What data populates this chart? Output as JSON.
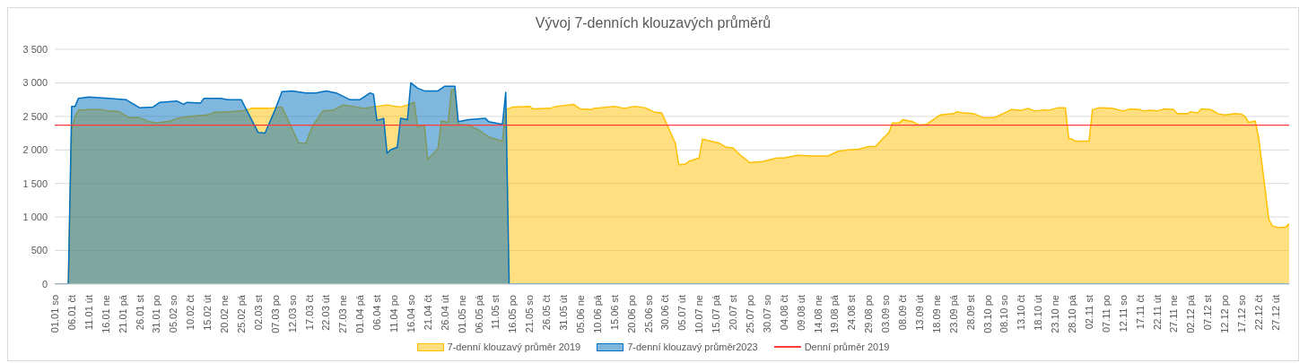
{
  "chart_data": {
    "type": "area",
    "title": "Vývoj 7-denních klouzavých průměrů",
    "xlim": [
      "--01-01",
      "--12-31"
    ],
    "xticks": [
      {
        "value": "--01-01",
        "label": "01.01 so"
      },
      {
        "value": "--01-06",
        "label": "06.01 čt"
      },
      {
        "value": "--01-11",
        "label": "11.01 út"
      },
      {
        "value": "--01-16",
        "label": "16.01 ne"
      },
      {
        "value": "--01-21",
        "label": "21.01 pá"
      },
      {
        "value": "--01-26",
        "label": "26.01 st"
      },
      {
        "value": "--01-31",
        "label": "31.01 po"
      },
      {
        "value": "--02-05",
        "label": "05.02 so"
      },
      {
        "value": "--02-10",
        "label": "10.02 čt"
      },
      {
        "value": "--02-15",
        "label": "15.02 út"
      },
      {
        "value": "--02-20",
        "label": "20.02 ne"
      },
      {
        "value": "--02-25",
        "label": "25.02 pá"
      },
      {
        "value": "--03-02",
        "label": "02.03 st"
      },
      {
        "value": "--03-07",
        "label": "07.03 po"
      },
      {
        "value": "--03-12",
        "label": "12.03 so"
      },
      {
        "value": "--03-17",
        "label": "17.03 čt"
      },
      {
        "value": "--03-22",
        "label": "22.03 út"
      },
      {
        "value": "--03-27",
        "label": "27.03 ne"
      },
      {
        "value": "--04-01",
        "label": "01.04 pá"
      },
      {
        "value": "--04-06",
        "label": "06.04 st"
      },
      {
        "value": "--04-11",
        "label": "11.04 po"
      },
      {
        "value": "--04-16",
        "label": "16.04 so"
      },
      {
        "value": "--04-21",
        "label": "21.04 čt"
      },
      {
        "value": "--04-26",
        "label": "26.04 út"
      },
      {
        "value": "--05-01",
        "label": "01.05 ne"
      },
      {
        "value": "--05-06",
        "label": "06.05 pá"
      },
      {
        "value": "--05-11",
        "label": "11.05 st"
      },
      {
        "value": "--05-16",
        "label": "16.05 po"
      },
      {
        "value": "--05-21",
        "label": "21.05 so"
      },
      {
        "value": "--05-26",
        "label": "26.05 čt"
      },
      {
        "value": "--05-31",
        "label": "31.05 út"
      },
      {
        "value": "--06-05",
        "label": "05.06 ne"
      },
      {
        "value": "--06-10",
        "label": "10.06 pá"
      },
      {
        "value": "--06-15",
        "label": "15.06 st"
      },
      {
        "value": "--06-20",
        "label": "20.06 po"
      },
      {
        "value": "--06-25",
        "label": "25.06 so"
      },
      {
        "value": "--06-30",
        "label": "30.06 čt"
      },
      {
        "value": "--07-05",
        "label": "05.07 út"
      },
      {
        "value": "--07-10",
        "label": "10.07 ne"
      },
      {
        "value": "--07-15",
        "label": "15.07 pá"
      },
      {
        "value": "--07-20",
        "label": "20.07 st"
      },
      {
        "value": "--07-25",
        "label": "25.07 po"
      },
      {
        "value": "--07-30",
        "label": "30.07 so"
      },
      {
        "value": "--08-04",
        "label": "04.08 čt"
      },
      {
        "value": "--08-09",
        "label": "09.08 út"
      },
      {
        "value": "--08-14",
        "label": "14.08 ne"
      },
      {
        "value": "--08-19",
        "label": "19.08 pá"
      },
      {
        "value": "--08-24",
        "label": "24.08 st"
      },
      {
        "value": "--08-29",
        "label": "29.08 po"
      },
      {
        "value": "--09-03",
        "label": "03.09 so"
      },
      {
        "value": "--09-08",
        "label": "08.09 čt"
      },
      {
        "value": "--09-13",
        "label": "13.09 út"
      },
      {
        "value": "--09-18",
        "label": "18.09 ne"
      },
      {
        "value": "--09-23",
        "label": "23.09 pá"
      },
      {
        "value": "--09-28",
        "label": "28.09 st"
      },
      {
        "value": "--10-03",
        "label": "03.10 po"
      },
      {
        "value": "--10-08",
        "label": "08.10 so"
      },
      {
        "value": "--10-13",
        "label": "13.10 čt"
      },
      {
        "value": "--10-18",
        "label": "18.10 út"
      },
      {
        "value": "--10-23",
        "label": "23.10 ne"
      },
      {
        "value": "--10-28",
        "label": "28.10 pá"
      },
      {
        "value": "--11-02",
        "label": "02.11 st"
      },
      {
        "value": "--11-07",
        "label": "07.11 po"
      },
      {
        "value": "--11-12",
        "label": "12.11 so"
      },
      {
        "value": "--11-17",
        "label": "17.11 čt"
      },
      {
        "value": "--11-22",
        "label": "22.11 út"
      },
      {
        "value": "--11-27",
        "label": "27.11 ne"
      },
      {
        "value": "--12-02",
        "label": "02.12 pá"
      },
      {
        "value": "--12-07",
        "label": "07.12 st"
      },
      {
        "value": "--12-12",
        "label": "12.12 po"
      },
      {
        "value": "--12-17",
        "label": "17.12 so"
      },
      {
        "value": "--12-22",
        "label": "22.12 čt"
      },
      {
        "value": "--12-27",
        "label": "27.12 út"
      }
    ],
    "ylim": [
      0,
      3500
    ],
    "yticks": [
      0,
      500,
      {
        "value": 1000,
        "label": "1 000"
      },
      {
        "value": 1500,
        "label": "1 500"
      },
      {
        "value": 2000,
        "label": "2 000"
      },
      {
        "value": 2500,
        "label": "2 500"
      },
      {
        "value": 3000,
        "label": "3 000"
      },
      {
        "value": 3500,
        "label": "3 500"
      }
    ],
    "grid": "y",
    "legend": "bottom",
    "series": [
      {
        "name": "7-denní klouzavý průměr 2019",
        "color": "#ffc000",
        "x": [
          "--01-01",
          "--01-05",
          "--01-06",
          "--01-07",
          "--01-08",
          "--01-11",
          "--01-15",
          "--01-17",
          "--01-20",
          "--01-23",
          "--01-26",
          "--01-29",
          "--01-31",
          "--02-04",
          "--02-06",
          "--02-10",
          "--02-15",
          "--02-17",
          "--02-22",
          "--02-25",
          "--02-28",
          "--03-05",
          "--03-09",
          "--03-11",
          "--03-14",
          "--03-16",
          "--03-18",
          "--03-21",
          "--03-24",
          "--03-27",
          "--03-30",
          "--04-02",
          "--04-06",
          "--04-09",
          "--04-13",
          "--04-15",
          "--04-17",
          "--04-18",
          "--04-20",
          "--04-21",
          "--04-24",
          "--04-25",
          "--04-27",
          "--04-28",
          "--04-29",
          "--04-30",
          "--05-03",
          "--05-06",
          "--05-09",
          "--05-13",
          "--05-14",
          "--05-16",
          "--05-21",
          "--05-22",
          "--05-27",
          "--05-29",
          "--06-03",
          "--06-05",
          "--06-08",
          "--06-09",
          "--06-15",
          "--06-18",
          "--06-21",
          "--06-24",
          "--06-27",
          "--06-29",
          "--07-03",
          "--07-04",
          "--07-06",
          "--07-07",
          "--07-10",
          "--07-11",
          "--07-16",
          "--07-18",
          "--07-20",
          "--07-22",
          "--07-25",
          "--07-29",
          "--08-02",
          "--08-04",
          "--08-08",
          "--08-12",
          "--08-17",
          "--08-20",
          "--08-23",
          "--08-26",
          "--08-29",
          "--08-31",
          "--09-02",
          "--09-04",
          "--09-05",
          "--09-07",
          "--09-08",
          "--09-11",
          "--09-13",
          "--09-15",
          "--09-19",
          "--09-23",
          "--09-24",
          "--09-26",
          "--09-29",
          "--10-02",
          "--10-05",
          "--10-08",
          "--10-10",
          "--10-13",
          "--10-15",
          "--10-17",
          "--10-20",
          "--10-21",
          "--10-24",
          "--10-26",
          "--10-27",
          "--10-28",
          "--10-29",
          "--11-02",
          "--11-03",
          "--11-05",
          "--11-09",
          "--11-12",
          "--11-14",
          "--11-17",
          "--11-18",
          "--11-20",
          "--11-22",
          "--11-24",
          "--11-27",
          "--11-28",
          "--12-01",
          "--12-02",
          "--12-04",
          "--12-05",
          "--12-08",
          "--12-10",
          "--12-12",
          "--12-15",
          "--12-17",
          "--12-18",
          "--12-19",
          "--12-21",
          "--12-22",
          "--12-25",
          "--12-26",
          "--12-28",
          "--12-30",
          "--12-31"
        ],
        "values": [
          0,
          0,
          2300,
          2500,
          2590,
          2600,
          2600,
          2580,
          2570,
          2480,
          2480,
          2420,
          2400,
          2430,
          2470,
          2500,
          2520,
          2560,
          2570,
          2580,
          2620,
          2620,
          2640,
          2420,
          2100,
          2100,
          2350,
          2580,
          2590,
          2670,
          2650,
          2620,
          2650,
          2670,
          2640,
          2670,
          2710,
          2340,
          2370,
          1860,
          2020,
          2430,
          2410,
          2900,
          2900,
          2380,
          2370,
          2300,
          2190,
          2130,
          2600,
          2640,
          2650,
          2610,
          2620,
          2650,
          2680,
          2610,
          2600,
          2620,
          2650,
          2620,
          2650,
          2630,
          2560,
          2550,
          2100,
          1780,
          1790,
          1830,
          1880,
          2160,
          2100,
          2040,
          2030,
          1930,
          1810,
          1830,
          1880,
          1880,
          1920,
          1910,
          1910,
          1980,
          2000,
          2010,
          2050,
          2050,
          2160,
          2260,
          2400,
          2400,
          2450,
          2420,
          2370,
          2380,
          2520,
          2540,
          2570,
          2550,
          2540,
          2480,
          2480,
          2550,
          2600,
          2590,
          2620,
          2580,
          2600,
          2590,
          2630,
          2630,
          2170,
          2160,
          2130,
          2130,
          2600,
          2630,
          2620,
          2580,
          2610,
          2600,
          2580,
          2590,
          2580,
          2610,
          2600,
          2540,
          2540,
          2570,
          2550,
          2610,
          2600,
          2540,
          2520,
          2540,
          2530,
          2500,
          2410,
          2430,
          2190,
          970,
          870,
          840,
          850,
          900
        ]
      },
      {
        "name": "7-denní klouzavý průměr2023",
        "color": "#0070c0",
        "x": [
          "--01-01",
          "--01-05",
          "--01-06",
          "--01-07",
          "--01-08",
          "--01-11",
          "--01-17",
          "--01-22",
          "--01-23",
          "--01-26",
          "--01-30",
          "--02-01",
          "--02-06",
          "--02-08",
          "--02-09",
          "--02-13",
          "--02-14",
          "--02-19",
          "--02-21",
          "--02-25",
          "--03-02",
          "--03-04",
          "--03-07",
          "--03-09",
          "--03-12",
          "--03-16",
          "--03-19",
          "--03-22",
          "--03-25",
          "--03-29",
          "--04-01",
          "--04-04",
          "--04-05",
          "--04-06",
          "--04-08",
          "--04-09",
          "--04-10",
          "--04-12",
          "--04-13",
          "--04-15",
          "--04-16",
          "--04-18",
          "--04-20",
          "--04-24",
          "--04-26",
          "--04-29",
          "--04-30",
          "--05-03",
          "--05-08",
          "--05-09",
          "--05-13",
          "--05-14",
          "--05-15",
          "--12-31"
        ],
        "values": [
          0,
          0,
          2650,
          2650,
          2770,
          2790,
          2770,
          2750,
          2720,
          2630,
          2640,
          2710,
          2730,
          2680,
          2710,
          2700,
          2770,
          2770,
          2750,
          2750,
          2260,
          2250,
          2600,
          2870,
          2880,
          2850,
          2850,
          2880,
          2850,
          2750,
          2750,
          2850,
          2830,
          2440,
          2470,
          1950,
          2000,
          2040,
          2470,
          2450,
          3000,
          2920,
          2880,
          2880,
          2950,
          2950,
          2420,
          2450,
          2470,
          2420,
          2380,
          2860,
          0,
          0
        ]
      }
    ],
    "ref_lines": [
      {
        "axis": "y",
        "value": 2370,
        "label": "Denní průměr 2019",
        "color": "#ff3b3b"
      }
    ]
  }
}
